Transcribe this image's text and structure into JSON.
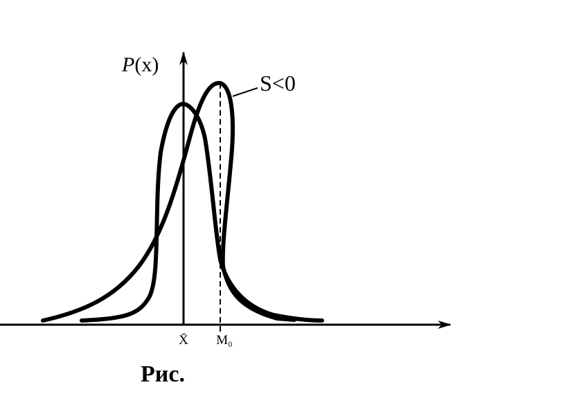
{
  "y_axis_label": {
    "italic": "P",
    "rest": "(x)"
  },
  "skew_label": "S<0",
  "tick_mean": "X̄",
  "tick_mode": "M₀",
  "caption": "Рис."
}
